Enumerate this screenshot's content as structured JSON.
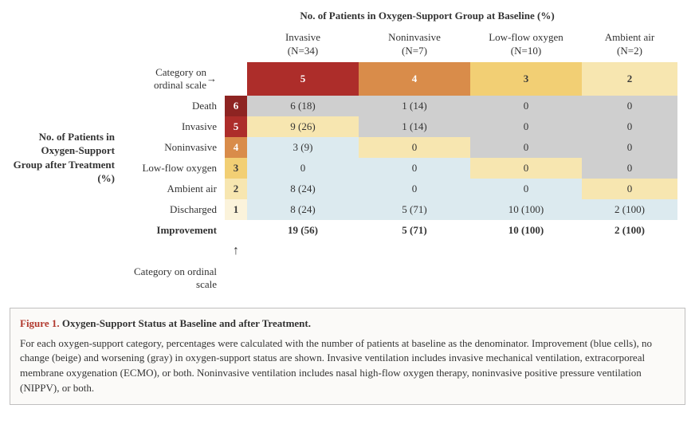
{
  "title_top": "No. of Patients in Oxygen-Support Group at Baseline (%)",
  "side_title": "No. of Patients in Oxygen-Support Group after Treatment (%)",
  "ordinal_top_label": "Category on ordinal scale",
  "ordinal_bottom_label": "Category on ordinal scale",
  "improvement_label": "Improvement",
  "columns": [
    {
      "label": "Invasive",
      "n": "(N=34)",
      "ord": "5",
      "bg": "#ad2d2a",
      "fg": "#ffffff"
    },
    {
      "label": "Noninvasive",
      "n": "(N=7)",
      "ord": "4",
      "bg": "#d98c4a",
      "fg": "#ffffff"
    },
    {
      "label": "Low-flow oxygen",
      "n": "(N=10)",
      "ord": "3",
      "bg": "#f2cf74",
      "fg": "#3a3a3a"
    },
    {
      "label": "Ambient air",
      "n": "(N=2)",
      "ord": "2",
      "bg": "#f7e6b0",
      "fg": "#3a3a3a"
    }
  ],
  "rows": [
    {
      "label": "Death",
      "num": "6",
      "num_bg": "#8e2422",
      "num_fg": "#ffffff",
      "cells": [
        "6 (18)",
        "1 (14)",
        "0",
        "0"
      ],
      "bg": [
        "#cfcfcf",
        "#cfcfcf",
        "#cfcfcf",
        "#cfcfcf"
      ]
    },
    {
      "label": "Invasive",
      "num": "5",
      "num_bg": "#ad2d2a",
      "num_fg": "#ffffff",
      "cells": [
        "9 (26)",
        "1 (14)",
        "0",
        "0"
      ],
      "bg": [
        "#f7e6b0",
        "#cfcfcf",
        "#cfcfcf",
        "#cfcfcf"
      ]
    },
    {
      "label": "Noninvasive",
      "num": "4",
      "num_bg": "#d98c4a",
      "num_fg": "#ffffff",
      "cells": [
        "3 (9)",
        "0",
        "0",
        "0"
      ],
      "bg": [
        "#dceaef",
        "#f7e6b0",
        "#cfcfcf",
        "#cfcfcf"
      ]
    },
    {
      "label": "Low-flow oxygen",
      "num": "3",
      "num_bg": "#f2cf74",
      "num_fg": "#3a3a3a",
      "cells": [
        "0",
        "0",
        "0",
        "0"
      ],
      "bg": [
        "#dceaef",
        "#dceaef",
        "#f7e6b0",
        "#cfcfcf"
      ]
    },
    {
      "label": "Ambient air",
      "num": "2",
      "num_bg": "#f7e6b0",
      "num_fg": "#3a3a3a",
      "cells": [
        "8 (24)",
        "0",
        "0",
        "0"
      ],
      "bg": [
        "#dceaef",
        "#dceaef",
        "#dceaef",
        "#f7e6b0"
      ]
    },
    {
      "label": "Discharged",
      "num": "1",
      "num_bg": "#fbf3db",
      "num_fg": "#3a3a3a",
      "cells": [
        "8 (24)",
        "5 (71)",
        "10 (100)",
        "2 (100)"
      ],
      "bg": [
        "#dceaef",
        "#dceaef",
        "#dceaef",
        "#dceaef"
      ]
    }
  ],
  "improvement_cells": [
    "19 (56)",
    "5 (71)",
    "10 (100)",
    "2 (100)"
  ],
  "colors": {
    "blue": "#dceaef",
    "beige": "#f7e6b0",
    "gray": "#cfcfcf"
  },
  "caption": {
    "figlabel": "Figure 1.",
    "title": "Oxygen-Support Status at Baseline and after Treatment.",
    "body": "For each oxygen-support category, percentages were calculated with the number of patients at baseline as the denominator. Improvement (blue cells), no change (beige) and worsening (gray) in oxygen-support status are shown. Invasive ventilation includes invasive mechanical ventilation, extracorporeal membrane oxygenation (ECMO), or both. Noninvasive ventilation includes nasal high-flow oxygen therapy, noninvasive positive pressure ventilation (NIPPV), or both."
  }
}
